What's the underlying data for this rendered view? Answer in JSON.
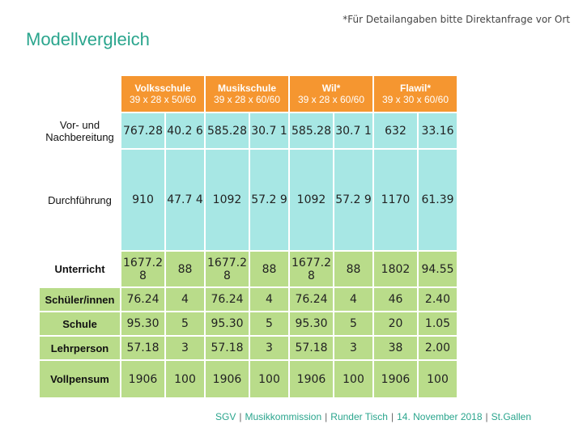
{
  "note": "*Für Detailangaben bitte Direktanfrage vor Ort",
  "title": "Modellvergleich",
  "columns": [
    {
      "name": "Volksschule",
      "dims": "39 x 28 x 50/60"
    },
    {
      "name": "Musikschule",
      "dims": "39 x 28 x 60/60"
    },
    {
      "name": "Wil*",
      "dims": "39 x 28 x 60/60"
    },
    {
      "name": "Flawil*",
      "dims": "39 x 30 x 60/60"
    }
  ],
  "rows": [
    {
      "label": "Vor- und Nachbereitung",
      "values": [
        "767.28",
        "40.2 6",
        "585.28",
        "30.7 1",
        "585.28",
        "30.7 1",
        "632",
        "33.16"
      ]
    },
    {
      "label": "Durchführung",
      "values": [
        "910",
        "47.7 4",
        "1092",
        "57.2 9",
        "1092",
        "57.2 9",
        "1170",
        "61.39"
      ]
    },
    {
      "label": "Unterricht",
      "values": [
        "1677.2 8",
        "88",
        "1677.2 8",
        "88",
        "1677.2 8",
        "88",
        "1802",
        "94.55"
      ]
    },
    {
      "label": "Schüler/innen",
      "values": [
        "76.24",
        "4",
        "76.24",
        "4",
        "76.24",
        "4",
        "46",
        "2.40"
      ]
    },
    {
      "label": "Schule",
      "values": [
        "95.30",
        "5",
        "95.30",
        "5",
        "95.30",
        "5",
        "20",
        "1.05"
      ]
    },
    {
      "label": "Lehrperson",
      "values": [
        "57.18",
        "3",
        "57.18",
        "3",
        "57.18",
        "3",
        "38",
        "2.00"
      ]
    },
    {
      "label": "Vollpensum",
      "values": [
        "1906",
        "100",
        "1906",
        "100",
        "1906",
        "100",
        "1906",
        "100"
      ]
    }
  ],
  "footer": [
    "SGV",
    "Musikkommission",
    "Runder Tisch",
    "14. November 2018",
    "St.Gallen"
  ],
  "colors": {
    "header": "#f59630",
    "teal_cell": "#a7e7e4",
    "green_cell": "#b9dc8a",
    "title": "#2aa58d"
  }
}
